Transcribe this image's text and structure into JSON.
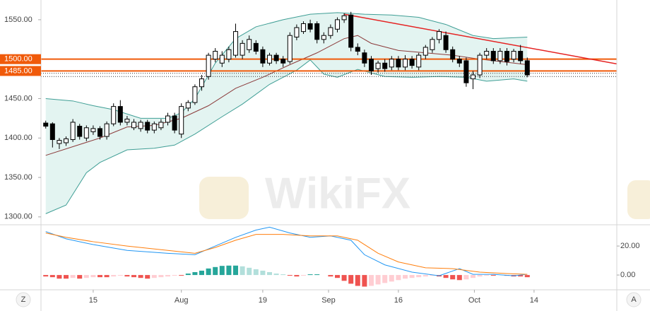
{
  "chart_data": [
    {
      "type": "candlestick",
      "watermark": "WikiFX",
      "xlim": [
        -0.7,
        84.2
      ],
      "ylim": [
        1290,
        1575
      ],
      "yticks": [
        {
          "value": 1300,
          "label": "1300.00"
        },
        {
          "value": 1350,
          "label": "1350.00"
        },
        {
          "value": 1400,
          "label": "1400.00"
        },
        {
          "value": 1450,
          "label": "1450.00"
        },
        {
          "value": 1550,
          "label": "1550.00"
        }
      ],
      "up_color": "#ffffff",
      "down_color": "#000000",
      "edge_color": "#000000",
      "open": [
        1419,
        1418,
        1393,
        1394,
        1398,
        1415,
        1400,
        1408,
        1412,
        1402,
        1418,
        1440,
        1420,
        1413,
        1412,
        1420,
        1410,
        1413,
        1420,
        1428,
        1405,
        1438,
        1445,
        1465,
        1478,
        1500,
        1495,
        1500,
        1505,
        1505,
        1512,
        1520,
        1512,
        1495,
        1505,
        1500,
        1497,
        1528,
        1535,
        1545,
        1545,
        1525,
        1530,
        1538,
        1550,
        1556,
        1515,
        1508,
        1500,
        1488,
        1495,
        1490,
        1500,
        1490,
        1500,
        1490,
        1505,
        1512,
        1525,
        1530,
        1512,
        1500,
        1498,
        1475,
        1480,
        1505,
        1510,
        1498,
        1510,
        1500,
        1510,
        1498
      ],
      "high": [
        1422,
        1420,
        1400,
        1402,
        1424,
        1418,
        1416,
        1416,
        1415,
        1421,
        1444,
        1448,
        1428,
        1424,
        1423,
        1423,
        1421,
        1424,
        1432,
        1432,
        1444,
        1448,
        1468,
        1480,
        1508,
        1514,
        1510,
        1516,
        1545,
        1524,
        1530,
        1524,
        1516,
        1508,
        1508,
        1504,
        1534,
        1544,
        1548,
        1550,
        1548,
        1534,
        1544,
        1553,
        1558,
        1560,
        1520,
        1512,
        1504,
        1498,
        1500,
        1504,
        1504,
        1505,
        1504,
        1508,
        1518,
        1528,
        1538,
        1535,
        1516,
        1504,
        1502,
        1485,
        1508,
        1514,
        1514,
        1514,
        1514,
        1513,
        1518,
        1502
      ],
      "low": [
        1412,
        1388,
        1386,
        1390,
        1395,
        1398,
        1396,
        1404,
        1398,
        1398,
        1415,
        1416,
        1416,
        1410,
        1408,
        1406,
        1406,
        1410,
        1416,
        1406,
        1400,
        1434,
        1442,
        1460,
        1474,
        1496,
        1490,
        1496,
        1502,
        1500,
        1508,
        1506,
        1490,
        1492,
        1494,
        1490,
        1494,
        1524,
        1532,
        1534,
        1520,
        1520,
        1526,
        1534,
        1546,
        1510,
        1505,
        1490,
        1480,
        1483,
        1484,
        1486,
        1486,
        1486,
        1488,
        1486,
        1500,
        1508,
        1520,
        1508,
        1496,
        1490,
        1465,
        1462,
        1476,
        1500,
        1494,
        1494,
        1492,
        1496,
        1494,
        1477
      ],
      "close": [
        1415,
        1398,
        1397,
        1399,
        1420,
        1402,
        1413,
        1412,
        1402,
        1418,
        1440,
        1420,
        1424,
        1420,
        1420,
        1410,
        1418,
        1420,
        1428,
        1410,
        1440,
        1445,
        1465,
        1475,
        1505,
        1510,
        1505,
        1512,
        1535,
        1520,
        1525,
        1510,
        1495,
        1505,
        1498,
        1495,
        1530,
        1540,
        1545,
        1538,
        1525,
        1530,
        1540,
        1550,
        1555,
        1515,
        1510,
        1495,
        1485,
        1495,
        1488,
        1500,
        1490,
        1500,
        1492,
        1505,
        1515,
        1525,
        1535,
        1512,
        1500,
        1495,
        1470,
        1480,
        1505,
        1510,
        1498,
        1510,
        1497,
        1510,
        1498,
        1480
      ],
      "band_fill": "#e3f4f1",
      "lines": [
        {
          "color": "#3f9e95",
          "x": [
            0,
            4,
            7,
            10,
            14,
            18,
            20,
            22,
            25,
            28,
            31,
            35,
            39,
            43,
            47,
            51,
            55,
            59,
            63,
            66,
            71
          ],
          "values": [
            1450,
            1447,
            1441,
            1436,
            1425,
            1425,
            1432,
            1450,
            1495,
            1526,
            1541,
            1550,
            1557,
            1559,
            1557,
            1556,
            1553,
            1544,
            1530,
            1526,
            1528
          ]
        },
        {
          "color": "#8b3a3a",
          "x": [
            0,
            4,
            8,
            12,
            16,
            20,
            24,
            28,
            32,
            36,
            40,
            44,
            46,
            48,
            52,
            56,
            60,
            64,
            68,
            71
          ],
          "values": [
            1378,
            1389,
            1400,
            1414,
            1416,
            1425,
            1441,
            1463,
            1477,
            1493,
            1508,
            1526,
            1530,
            1520,
            1511,
            1508,
            1505,
            1500,
            1496,
            1493
          ]
        },
        {
          "color": "#3f9e95",
          "x": [
            0,
            3,
            6,
            8,
            12,
            16,
            19,
            22,
            26,
            29,
            33,
            37,
            39,
            41,
            43,
            46,
            50,
            54,
            58,
            62,
            65,
            69,
            71
          ],
          "values": [
            1304,
            1315,
            1356,
            1369,
            1385,
            1387,
            1391,
            1405,
            1427,
            1443,
            1468,
            1486,
            1499,
            1481,
            1477,
            1487,
            1478,
            1477,
            1478,
            1477,
            1472,
            1475,
            1472
          ]
        }
      ],
      "levels": [
        {
          "value": 1500,
          "label": "1500.00",
          "color": "#f05a0a"
        },
        {
          "value": 1485,
          "label": "1485.00",
          "color": "#f05a0a"
        }
      ],
      "dotted_levels": [
        1482,
        1478
      ],
      "trendline": {
        "x": [
          44,
          84.2
        ],
        "values": [
          1557,
          1494
        ],
        "color": "#e52222"
      }
    },
    {
      "type": "macd",
      "xlim": [
        -0.7,
        84.2
      ],
      "ylim": [
        -10.2,
        33.7
      ],
      "yticks": [
        {
          "value": 0,
          "label": "0.00"
        },
        {
          "value": 20,
          "label": "20.00"
        }
      ],
      "xticks": [
        {
          "value": 7,
          "label": "15"
        },
        {
          "value": 20,
          "label": "Aug"
        },
        {
          "value": 32,
          "label": "19"
        },
        {
          "value": 41.7,
          "label": "Sep"
        },
        {
          "value": 52,
          "label": "16"
        },
        {
          "value": 63.2,
          "label": "Oct"
        },
        {
          "value": 72,
          "label": "14"
        }
      ],
      "hist_colors": {
        "pos_up": "#26a69a",
        "pos_down": "#b2dfdb",
        "neg_down": "#ef5350",
        "neg_up": "#ffcdd2"
      },
      "histogram": [
        -1,
        -1.5,
        -2.5,
        -2.5,
        -2,
        -2.5,
        -2,
        -1.5,
        -1.5,
        -1.5,
        -1,
        -0.5,
        -1,
        -1.5,
        -2,
        -2.5,
        -2,
        -1.5,
        -1,
        -0.5,
        -0.5,
        1,
        2,
        3,
        4.5,
        5.5,
        6.3,
        6.5,
        6.5,
        6,
        5,
        4,
        3,
        2,
        1,
        0.5,
        -0.5,
        -1,
        -0.5,
        0.5,
        0.5,
        0,
        -1,
        -2,
        -4,
        -6,
        -7.5,
        -8,
        -7.5,
        -6.5,
        -5.5,
        -4.5,
        -3.5,
        -2.5,
        -2,
        -1.5,
        -1,
        -0.5,
        -1,
        -2,
        -3,
        -3.5,
        -3,
        -2,
        -1,
        -0.5,
        -0.5,
        0,
        -0.5,
        -1,
        -1,
        -1.5
      ],
      "lines": [
        {
          "color": "#2196f3",
          "x": [
            0,
            3,
            7,
            12,
            18,
            22,
            25,
            28,
            31,
            33,
            36,
            39,
            42,
            45,
            47,
            50,
            54,
            58,
            61,
            63,
            66,
            69,
            71
          ],
          "values": [
            30,
            25,
            21,
            17,
            15,
            14,
            20,
            26,
            31,
            33,
            29,
            26,
            27,
            24,
            14,
            7,
            2,
            -0.5,
            4.4,
            0.5,
            0.5,
            -0.5,
            0.5
          ]
        },
        {
          "color": "#ff7f0e",
          "x": [
            0,
            3,
            7,
            12,
            18,
            22,
            25,
            28,
            31,
            35,
            39,
            43,
            46,
            49,
            52,
            56,
            60,
            64,
            68,
            71
          ],
          "values": [
            29,
            26,
            23,
            20,
            17,
            15,
            19,
            24,
            28,
            28,
            27,
            27,
            24,
            15,
            9,
            5,
            4.4,
            2,
            1,
            0.5
          ]
        }
      ]
    }
  ],
  "ui": {
    "left_button": "Z",
    "right_button": "A"
  }
}
